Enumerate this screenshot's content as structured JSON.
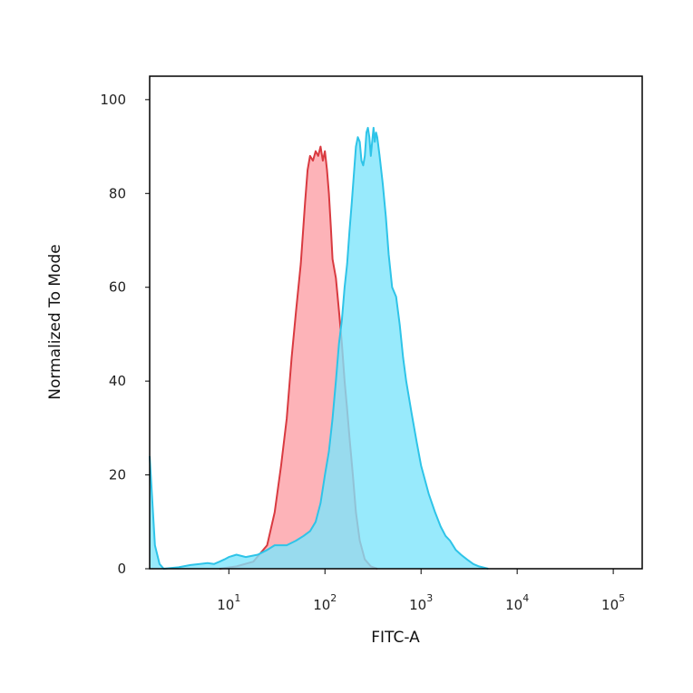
{
  "chart_data": {
    "type": "area",
    "title": "",
    "xlabel": "FITC-A",
    "ylabel": "Normalized To Mode",
    "x_scale": "log",
    "xlim": [
      1.5,
      200000
    ],
    "ylim": [
      0,
      105
    ],
    "grid": false,
    "legend": "none",
    "x_ticks": [
      {
        "value": 10,
        "base": "10",
        "exp": "1"
      },
      {
        "value": 100,
        "base": "10",
        "exp": "2"
      },
      {
        "value": 1000,
        "base": "10",
        "exp": "3"
      },
      {
        "value": 10000,
        "base": "10",
        "exp": "4"
      },
      {
        "value": 100000,
        "base": "10",
        "exp": "5"
      }
    ],
    "y_ticks": [
      0,
      20,
      40,
      60,
      80,
      100
    ],
    "series": [
      {
        "fill": "#fca0a6",
        "stroke": "#d93a40",
        "points": [
          [
            8,
            0
          ],
          [
            12,
            0.5
          ],
          [
            18,
            1.5
          ],
          [
            25,
            5
          ],
          [
            30,
            12
          ],
          [
            35,
            22
          ],
          [
            40,
            32
          ],
          [
            45,
            45
          ],
          [
            50,
            55
          ],
          [
            56,
            65
          ],
          [
            62,
            78
          ],
          [
            66,
            85
          ],
          [
            70,
            88
          ],
          [
            75,
            87
          ],
          [
            80,
            89
          ],
          [
            85,
            88
          ],
          [
            90,
            90
          ],
          [
            95,
            87
          ],
          [
            100,
            89
          ],
          [
            105,
            85
          ],
          [
            110,
            80
          ],
          [
            115,
            73
          ],
          [
            120,
            66
          ],
          [
            130,
            62
          ],
          [
            140,
            55
          ],
          [
            150,
            48
          ],
          [
            160,
            40
          ],
          [
            170,
            34
          ],
          [
            180,
            28
          ],
          [
            195,
            20
          ],
          [
            210,
            12
          ],
          [
            230,
            6
          ],
          [
            260,
            2
          ],
          [
            300,
            0.5
          ],
          [
            350,
            0
          ]
        ]
      },
      {
        "fill": "#7ee5fb",
        "stroke": "#2ec4e8",
        "points": [
          [
            1.5,
            24
          ],
          [
            1.7,
            5
          ],
          [
            1.9,
            1
          ],
          [
            2.1,
            0
          ],
          [
            3,
            0.3
          ],
          [
            4,
            0.8
          ],
          [
            5,
            1
          ],
          [
            6,
            1.2
          ],
          [
            7,
            1
          ],
          [
            8,
            1.5
          ],
          [
            9,
            2
          ],
          [
            10,
            2.5
          ],
          [
            12,
            3
          ],
          [
            15,
            2.5
          ],
          [
            20,
            3
          ],
          [
            25,
            4
          ],
          [
            30,
            5
          ],
          [
            40,
            5
          ],
          [
            50,
            6
          ],
          [
            60,
            7
          ],
          [
            70,
            8
          ],
          [
            80,
            10
          ],
          [
            90,
            14
          ],
          [
            100,
            20
          ],
          [
            110,
            25
          ],
          [
            120,
            32
          ],
          [
            130,
            40
          ],
          [
            140,
            48
          ],
          [
            150,
            53
          ],
          [
            160,
            60
          ],
          [
            170,
            65
          ],
          [
            180,
            72
          ],
          [
            190,
            78
          ],
          [
            200,
            84
          ],
          [
            210,
            90
          ],
          [
            220,
            92
          ],
          [
            230,
            91
          ],
          [
            240,
            87
          ],
          [
            250,
            86
          ],
          [
            260,
            88
          ],
          [
            270,
            93
          ],
          [
            280,
            94
          ],
          [
            290,
            92
          ],
          [
            300,
            88
          ],
          [
            310,
            91
          ],
          [
            320,
            94
          ],
          [
            330,
            91
          ],
          [
            340,
            93
          ],
          [
            350,
            92
          ],
          [
            370,
            88
          ],
          [
            400,
            82
          ],
          [
            430,
            75
          ],
          [
            460,
            67
          ],
          [
            500,
            60
          ],
          [
            550,
            58
          ],
          [
            600,
            52
          ],
          [
            650,
            45
          ],
          [
            700,
            40
          ],
          [
            800,
            33
          ],
          [
            900,
            27
          ],
          [
            1000,
            22
          ],
          [
            1200,
            16
          ],
          [
            1400,
            12
          ],
          [
            1600,
            9
          ],
          [
            1800,
            7
          ],
          [
            2000,
            6
          ],
          [
            2300,
            4
          ],
          [
            2600,
            3
          ],
          [
            3000,
            2
          ],
          [
            3500,
            1
          ],
          [
            4000,
            0.5
          ],
          [
            5000,
            0
          ]
        ]
      }
    ]
  }
}
